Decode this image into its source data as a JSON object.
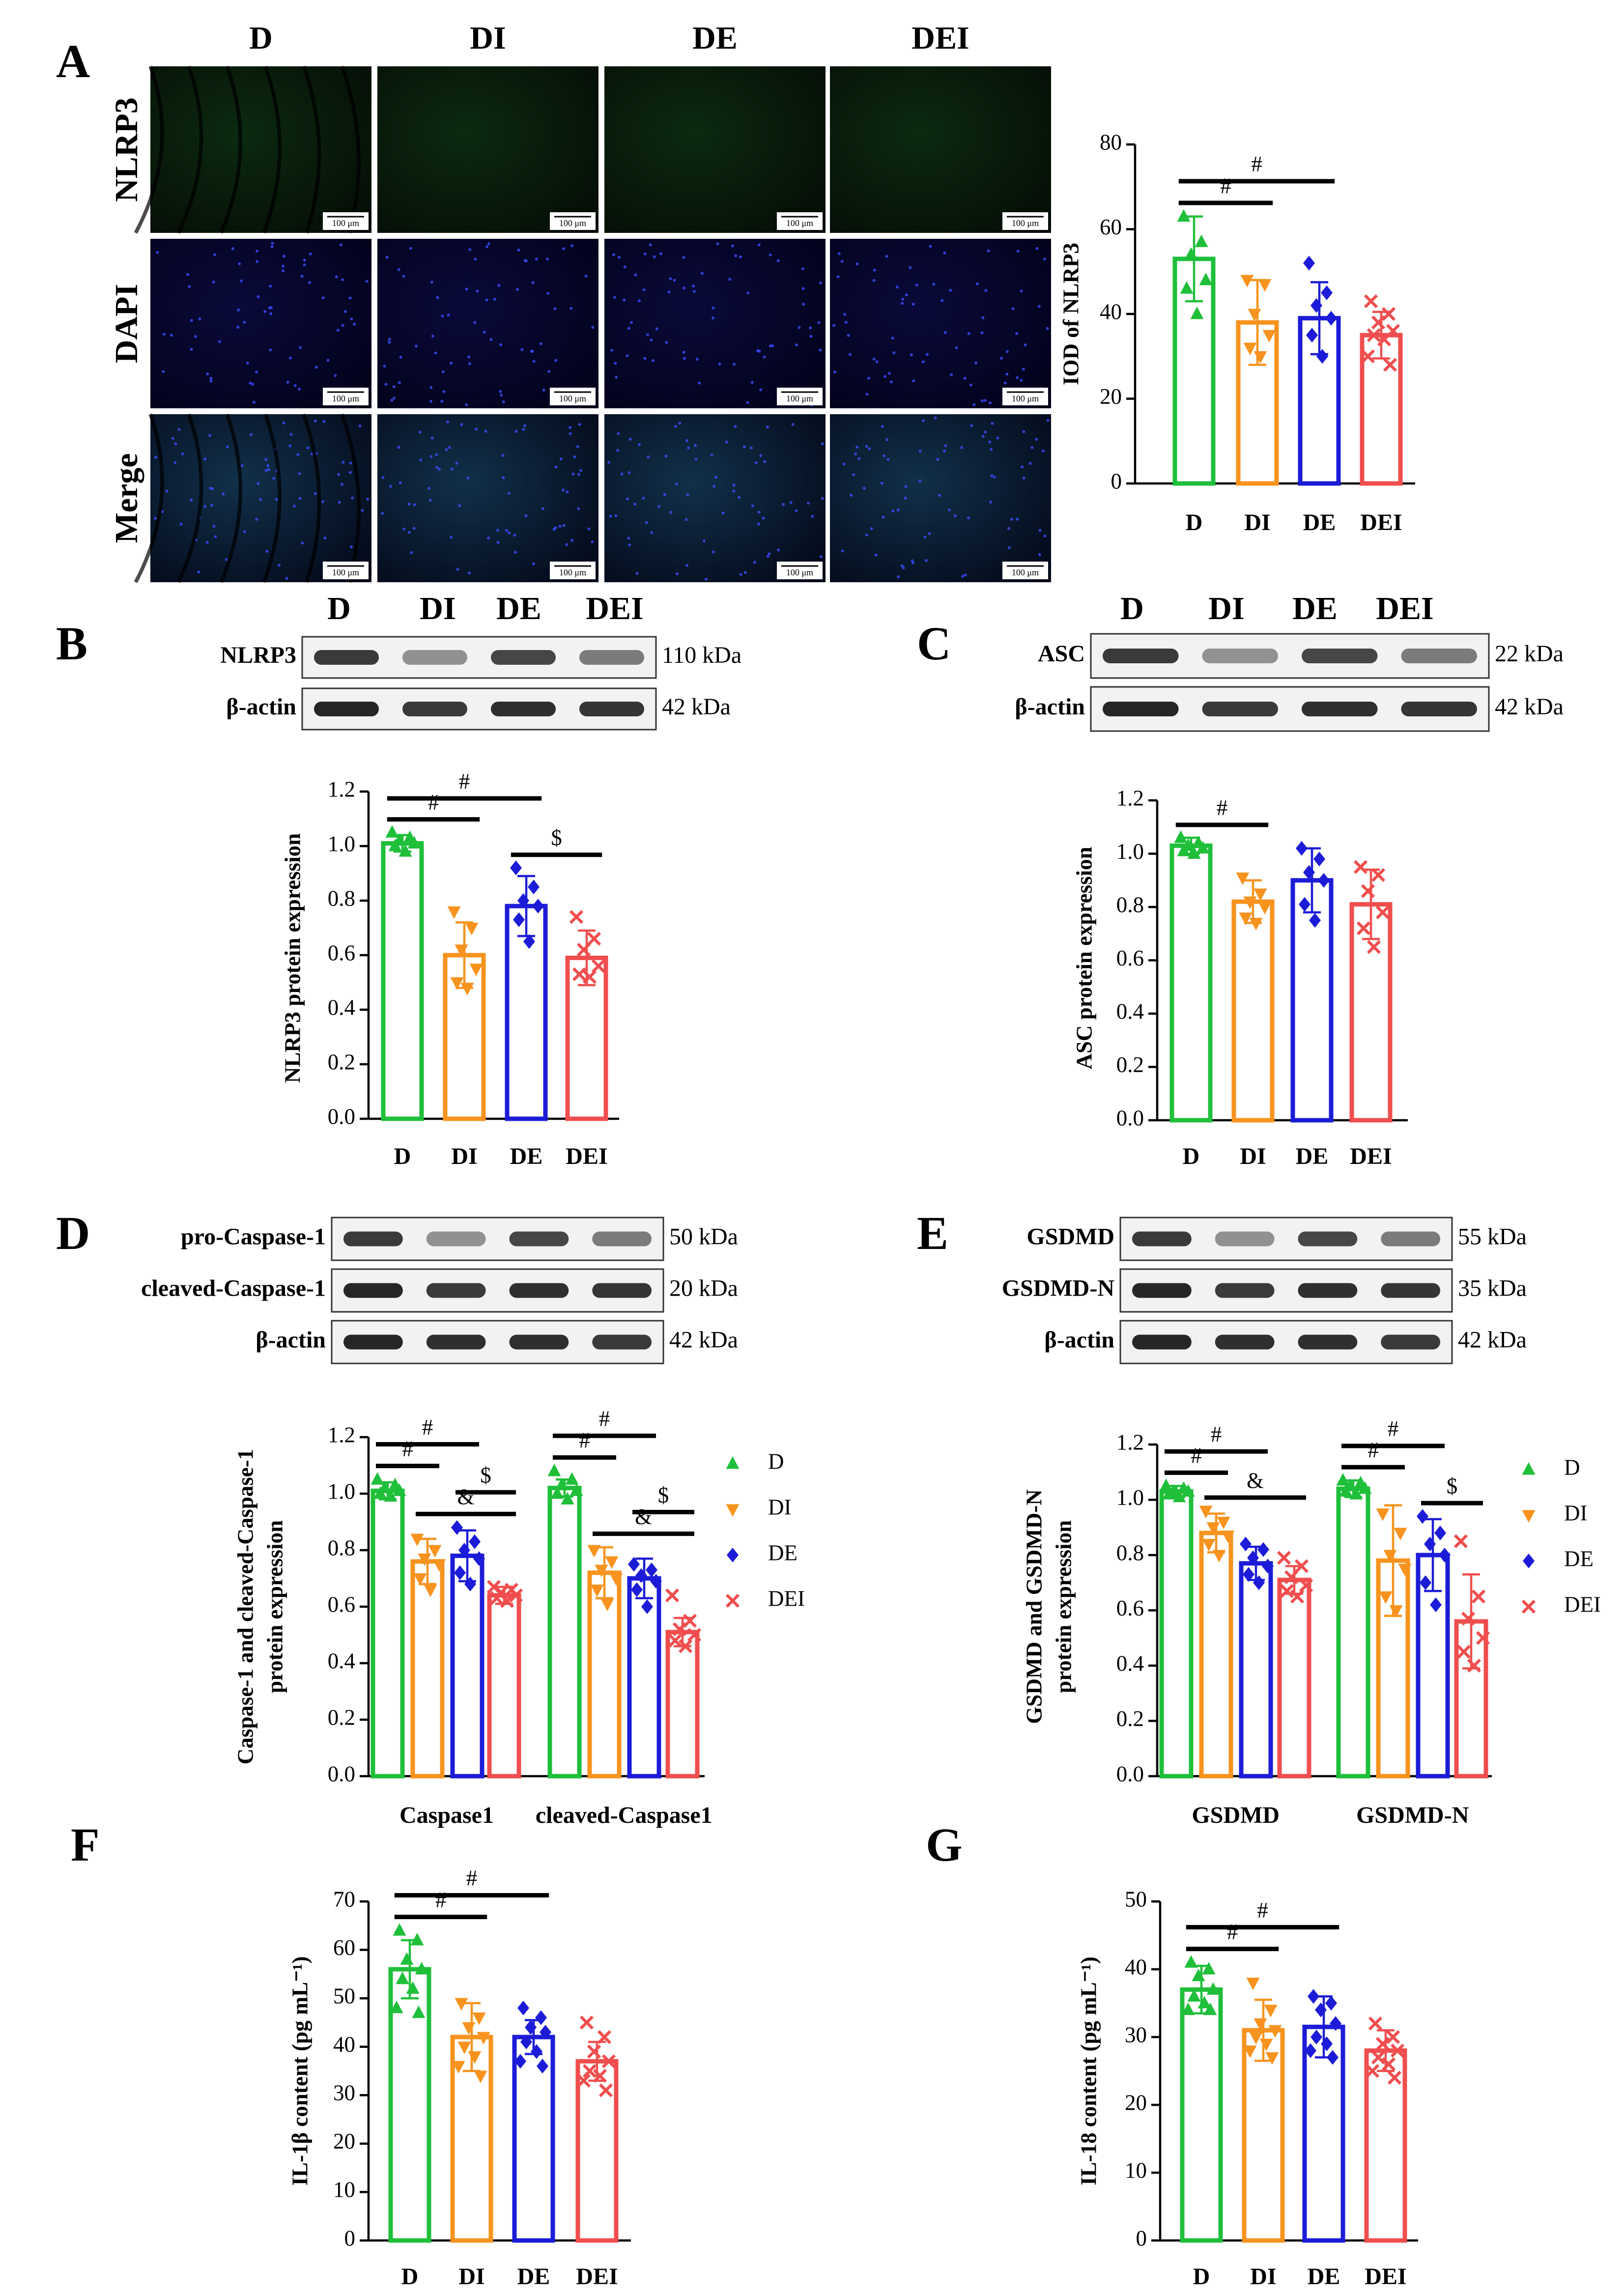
{
  "panel_labels": [
    "A",
    "B",
    "C",
    "D",
    "E",
    "F",
    "G"
  ],
  "microscopy": {
    "columns": [
      "D",
      "DI",
      "DE",
      "DEI"
    ],
    "rows": [
      "NLRP3",
      "DAPI",
      "Merge"
    ],
    "scale_bar": "100 μm"
  },
  "blots": [
    {
      "lanes": [
        "D",
        "DI",
        "DE",
        "DEI"
      ],
      "rows": [
        {
          "protein": "NLRP3",
          "size": "110 kDa"
        },
        {
          "protein": "β-actin",
          "size": "42 kDa"
        }
      ]
    },
    {
      "lanes": [
        "D",
        "DI",
        "DE",
        "DEI"
      ],
      "rows": [
        {
          "protein": "ASC",
          "size": "22 kDa"
        },
        {
          "protein": "β-actin",
          "size": "42 kDa"
        }
      ]
    },
    {
      "lanes": [
        "D",
        "DI",
        "DE",
        "DEI"
      ],
      "rows": [
        {
          "protein": "pro-Caspase-1",
          "size": "50 kDa"
        },
        {
          "protein": "cleaved-Caspase-1",
          "size": "20 kDa"
        },
        {
          "protein": "β-actin",
          "size": "42 kDa"
        }
      ]
    },
    {
      "lanes": [
        "D",
        "DI",
        "DE",
        "DEI"
      ],
      "rows": [
        {
          "protein": "GSDMD",
          "size": "55 kDa"
        },
        {
          "protein": "GSDMD-N",
          "size": "35 kDa"
        },
        {
          "protein": "β-actin",
          "size": "42 kDa"
        }
      ]
    }
  ],
  "chart_data": [
    {
      "type": "bar",
      "y_label": "IOD of NLRP3",
      "categories": [
        "D",
        "DI",
        "DE",
        "DEI"
      ],
      "values": [
        53,
        38,
        39,
        35
      ],
      "errors": [
        10,
        10,
        8.5,
        5.5
      ],
      "colors": [
        "#1fbf3a",
        "#f7931e",
        "#1c1cd8",
        "#f04e4e"
      ],
      "markers": [
        "triangle",
        "triangle-down",
        "diamond",
        "x"
      ],
      "points": [
        [
          63,
          57,
          54,
          48,
          46,
          40
        ],
        [
          48,
          47,
          40,
          35,
          32,
          30
        ],
        [
          52,
          45,
          42,
          39,
          35,
          30
        ],
        [
          43,
          40,
          38,
          36,
          35,
          34,
          30,
          28
        ]
      ],
      "ylim": [
        0,
        80
      ],
      "yticks": [
        0,
        20,
        40,
        60,
        80
      ],
      "annotations": [
        {
          "text": "#",
          "groups": [
            "D",
            "DI"
          ]
        },
        {
          "text": "#",
          "groups": [
            "D",
            "DE"
          ]
        }
      ]
    },
    {
      "type": "bar",
      "y_label": "NLRP3 protein expression",
      "categories": [
        "D",
        "DI",
        "DE",
        "DEI"
      ],
      "values": [
        1.01,
        0.6,
        0.78,
        0.59
      ],
      "errors": [
        0.03,
        0.12,
        0.11,
        0.1
      ],
      "colors": [
        "#1fbf3a",
        "#f7931e",
        "#1c1cd8",
        "#f04e4e"
      ],
      "markers": [
        "triangle",
        "triangle-down",
        "diamond",
        "x"
      ],
      "points": [
        [
          1.05,
          1.03,
          1.02,
          1.01,
          1.0,
          0.98
        ],
        [
          0.76,
          0.7,
          0.62,
          0.55,
          0.5,
          0.48
        ],
        [
          0.92,
          0.85,
          0.8,
          0.78,
          0.73,
          0.65
        ],
        [
          0.74,
          0.66,
          0.62,
          0.56,
          0.53,
          0.52
        ]
      ],
      "ylim": [
        0,
        1.2
      ],
      "yticks": [
        {
          "value": 0,
          "label": "0.0"
        },
        0.2,
        0.4,
        0.6,
        0.8,
        {
          "value": 1,
          "label": "1.0"
        },
        1.2
      ],
      "annotations": [
        {
          "text": "$",
          "groups": [
            "DE",
            "DEI"
          ]
        },
        {
          "text": "#",
          "groups": [
            "D",
            "DI"
          ]
        },
        {
          "text": "#",
          "groups": [
            "D",
            "DE"
          ]
        }
      ]
    },
    {
      "type": "bar",
      "y_label": "ASC protein expression",
      "categories": [
        "D",
        "DI",
        "DE",
        "DEI"
      ],
      "values": [
        1.03,
        0.82,
        0.9,
        0.81
      ],
      "errors": [
        0.03,
        0.08,
        0.12,
        0.13
      ],
      "colors": [
        "#1fbf3a",
        "#f7931e",
        "#1c1cd8",
        "#f04e4e"
      ],
      "markers": [
        "triangle",
        "triangle-down",
        "diamond",
        "x"
      ],
      "points": [
        [
          1.06,
          1.04,
          1.03,
          1.02,
          1.01,
          1.0
        ],
        [
          0.91,
          0.85,
          0.82,
          0.8,
          0.76,
          0.74
        ],
        [
          1.02,
          0.98,
          0.93,
          0.9,
          0.81,
          0.75
        ],
        [
          0.95,
          0.92,
          0.86,
          0.78,
          0.72,
          0.65
        ]
      ],
      "ylim": [
        0,
        1.2
      ],
      "yticks": [
        {
          "value": 0,
          "label": "0.0"
        },
        0.2,
        0.4,
        0.6,
        0.8,
        {
          "value": 1,
          "label": "1.0"
        },
        1.2
      ],
      "annotations": [
        {
          "text": "#",
          "groups": [
            "D",
            "DI"
          ]
        }
      ]
    },
    {
      "type": "grouped_bar",
      "y_label": [
        "Caspase-1 and cleaved-Caspase-1",
        "protein expression"
      ],
      "categories": [
        "Caspase1",
        "cleaved-Caspase1"
      ],
      "series": [
        {
          "name": "D",
          "color": "#1fbf3a",
          "marker": "triangle",
          "values": [
            1.01,
            1.02
          ],
          "errors": [
            0.03,
            0.03
          ],
          "points": [
            [
              1.05,
              1.03,
              1.02,
              1.01,
              1.0,
              0.99
            ],
            [
              1.08,
              1.05,
              1.03,
              1.01,
              1.0,
              0.98
            ]
          ]
        },
        {
          "name": "DI",
          "color": "#f7931e",
          "marker": "triangle-down",
          "values": [
            0.76,
            0.72
          ],
          "errors": [
            0.08,
            0.09
          ],
          "points": [
            [
              0.84,
              0.8,
              0.77,
              0.75,
              0.7,
              0.66
            ],
            [
              0.8,
              0.76,
              0.73,
              0.7,
              0.66,
              0.61
            ]
          ]
        },
        {
          "name": "DE",
          "color": "#1c1cd8",
          "marker": "diamond",
          "values": [
            0.78,
            0.7
          ],
          "errors": [
            0.09,
            0.07
          ],
          "points": [
            [
              0.88,
              0.83,
              0.8,
              0.77,
              0.72,
              0.68
            ],
            [
              0.75,
              0.73,
              0.71,
              0.69,
              0.66,
              0.6
            ]
          ]
        },
        {
          "name": "DEI",
          "color": "#f04e4e",
          "marker": "x",
          "values": [
            0.64,
            0.51
          ],
          "errors": [
            0.03,
            0.05
          ],
          "points": [
            [
              0.67,
              0.66,
              0.65,
              0.64,
              0.63,
              0.62
            ],
            [
              0.64,
              0.55,
              0.52,
              0.5,
              0.48,
              0.46
            ]
          ]
        }
      ],
      "ylim": [
        0,
        1.2
      ],
      "yticks": [
        {
          "value": 0,
          "label": "0.0"
        },
        0.2,
        0.4,
        0.6,
        0.8,
        {
          "value": 1,
          "label": "1.0"
        },
        1.2
      ],
      "legend": "right",
      "annotations": [
        {
          "text": "&",
          "category": "Caspase1",
          "groups": [
            "DI",
            "DEI"
          ]
        },
        {
          "text": "$",
          "category": "Caspase1",
          "groups": [
            "DE",
            "DEI"
          ]
        },
        {
          "text": "#",
          "category": "Caspase1",
          "groups": [
            "D",
            "DI"
          ]
        },
        {
          "text": "#",
          "category": "Caspase1",
          "groups": [
            "D",
            "DE"
          ]
        },
        {
          "text": "&",
          "category": "cleaved-Caspase1",
          "groups": [
            "DI",
            "DEI"
          ]
        },
        {
          "text": "$",
          "category": "cleaved-Caspase1",
          "groups": [
            "DE",
            "DEI"
          ]
        },
        {
          "text": "#",
          "category": "cleaved-Caspase1",
          "groups": [
            "D",
            "DI"
          ]
        },
        {
          "text": "#",
          "category": "cleaved-Caspase1",
          "groups": [
            "D",
            "DE"
          ]
        }
      ]
    },
    {
      "type": "grouped_bar",
      "y_label": [
        "GSDMD and GSDMD-N",
        "protein expression"
      ],
      "categories": [
        "GSDMD",
        "GSDMD-N"
      ],
      "series": [
        {
          "name": "D",
          "color": "#1fbf3a",
          "marker": "triangle",
          "values": [
            1.03,
            1.04
          ],
          "errors": [
            0.02,
            0.03
          ],
          "points": [
            [
              1.05,
              1.04,
              1.03,
              1.03,
              1.02,
              1.01
            ],
            [
              1.07,
              1.06,
              1.05,
              1.04,
              1.03,
              1.02
            ]
          ]
        },
        {
          "name": "DI",
          "color": "#f7931e",
          "marker": "triangle-down",
          "values": [
            0.88,
            0.78
          ],
          "errors": [
            0.07,
            0.2
          ],
          "points": [
            [
              0.96,
              0.92,
              0.9,
              0.87,
              0.84,
              0.8
            ],
            [
              0.95,
              0.88,
              0.8,
              0.75,
              0.65,
              0.6
            ]
          ]
        },
        {
          "name": "DE",
          "color": "#1c1cd8",
          "marker": "diamond",
          "values": [
            0.77,
            0.8
          ],
          "errors": [
            0.06,
            0.13
          ],
          "points": [
            [
              0.84,
              0.82,
              0.79,
              0.76,
              0.73,
              0.7
            ],
            [
              0.94,
              0.88,
              0.84,
              0.8,
              0.7,
              0.62
            ]
          ]
        },
        {
          "name": "DEI",
          "color": "#f04e4e",
          "marker": "x",
          "values": [
            0.71,
            0.56
          ],
          "errors": [
            0.05,
            0.17
          ],
          "points": [
            [
              0.79,
              0.76,
              0.72,
              0.69,
              0.67,
              0.65
            ],
            [
              0.85,
              0.65,
              0.57,
              0.5,
              0.45,
              0.4
            ]
          ]
        }
      ],
      "ylim": [
        0,
        1.2
      ],
      "yticks": [
        {
          "value": 0,
          "label": "0.0"
        },
        0.2,
        0.4,
        0.6,
        0.8,
        {
          "value": 1,
          "label": "1.0"
        },
        1.2
      ],
      "legend": "right",
      "annotations": [
        {
          "text": "&",
          "category": "GSDMD",
          "groups": [
            "DI",
            "DEI"
          ]
        },
        {
          "text": "#",
          "category": "GSDMD",
          "groups": [
            "D",
            "DI"
          ]
        },
        {
          "text": "#",
          "category": "GSDMD",
          "groups": [
            "D",
            "DE"
          ]
        },
        {
          "text": "$",
          "category": "GSDMD-N",
          "groups": [
            "DE",
            "DEI"
          ]
        },
        {
          "text": "#",
          "category": "GSDMD-N",
          "groups": [
            "D",
            "DI"
          ]
        },
        {
          "text": "#",
          "category": "GSDMD-N",
          "groups": [
            "D",
            "DE"
          ]
        }
      ]
    },
    {
      "type": "bar",
      "y_label": "IL-1β content (pg mL⁻¹)",
      "categories": [
        "D",
        "DI",
        "DE",
        "DEI"
      ],
      "values": [
        56,
        42,
        42,
        37
      ],
      "errors": [
        6,
        7,
        3.5,
        4
      ],
      "colors": [
        "#1fbf3a",
        "#f7931e",
        "#1c1cd8",
        "#f04e4e"
      ],
      "markers": [
        "triangle",
        "triangle-down",
        "diamond",
        "x"
      ],
      "points": [
        [
          64,
          62,
          58,
          56,
          54,
          52,
          48,
          47
        ],
        [
          49,
          46,
          44,
          42,
          40,
          38,
          36,
          34
        ],
        [
          48,
          46,
          44,
          43,
          41,
          39,
          37,
          36
        ],
        [
          45,
          42,
          39,
          37,
          35,
          34,
          33,
          31
        ]
      ],
      "ylim": [
        0,
        70
      ],
      "yticks": [
        0,
        10,
        20,
        30,
        40,
        50,
        60,
        70
      ],
      "annotations": [
        {
          "text": "#",
          "groups": [
            "D",
            "DI"
          ]
        },
        {
          "text": "#",
          "groups": [
            "D",
            "DE"
          ]
        }
      ]
    },
    {
      "type": "bar",
      "y_label": "IL-18 content (pg mL⁻¹)",
      "categories": [
        "D",
        "DI",
        "DE",
        "DEI"
      ],
      "values": [
        37,
        31,
        31.5,
        28
      ],
      "errors": [
        3.5,
        4.5,
        4.5,
        3
      ],
      "colors": [
        "#1fbf3a",
        "#f7931e",
        "#1c1cd8",
        "#f04e4e"
      ],
      "markers": [
        "triangle",
        "triangle-down",
        "diamond",
        "x"
      ],
      "points": [
        [
          41,
          40,
          39,
          37,
          36,
          35,
          34,
          34
        ],
        [
          38,
          34,
          32,
          31,
          30,
          29,
          28,
          27
        ],
        [
          36,
          35,
          34,
          32,
          30,
          29,
          28,
          27
        ],
        [
          32,
          30,
          29,
          28,
          27,
          26,
          25,
          24
        ]
      ],
      "ylim": [
        0,
        50
      ],
      "yticks": [
        0,
        10,
        20,
        30,
        40,
        50
      ],
      "annotations": [
        {
          "text": "#",
          "groups": [
            "D",
            "DI"
          ]
        },
        {
          "text": "#",
          "groups": [
            "D",
            "DE"
          ]
        }
      ]
    }
  ]
}
